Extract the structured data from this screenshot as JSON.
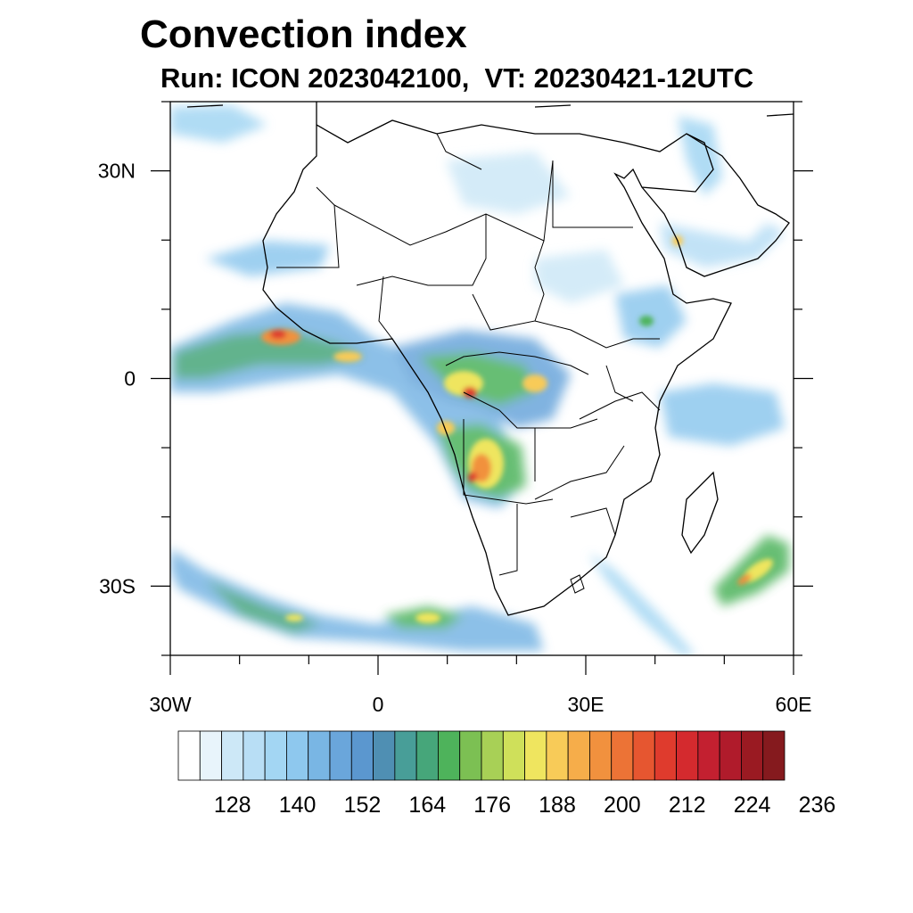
{
  "title": "Convection index",
  "subtitle": "Run: ICON 2023042100,  VT: 20230421-12UTC",
  "axes": {
    "lon_ticks": [
      {
        "lon": -30,
        "label": "30W"
      },
      {
        "lon": 0,
        "label": "0"
      },
      {
        "lon": 30,
        "label": "30E"
      },
      {
        "lon": 60,
        "label": "60E"
      }
    ],
    "lat_ticks": [
      {
        "lat": 30,
        "label": "30N"
      },
      {
        "lat": 0,
        "label": "0"
      },
      {
        "lat": -30,
        "label": "30S"
      }
    ],
    "lon_range": [
      -30,
      60
    ],
    "lat_range": [
      -40,
      40
    ]
  },
  "colorbar": {
    "colors": [
      "#ffffff",
      "#e8f4fb",
      "#cde8f7",
      "#b8def5",
      "#a3d6f3",
      "#8ec8ee",
      "#79b6e4",
      "#6aa6db",
      "#5b97cf",
      "#4f8fb3",
      "#489e98",
      "#46a67a",
      "#4eb35b",
      "#7cc053",
      "#a8d056",
      "#cfe05a",
      "#efe55f",
      "#f8cb58",
      "#f6ad4a",
      "#f1913e",
      "#ec7336",
      "#e65630",
      "#df3b2d",
      "#d42a2e",
      "#c32030",
      "#b01b2b",
      "#9a1a22",
      "#851a1e"
    ],
    "labels": [
      "128",
      "140",
      "152",
      "164",
      "176",
      "188",
      "200",
      "212",
      "224",
      "236"
    ]
  },
  "map_colors": {
    "light_blue": "#a3d6f3",
    "mid_blue": "#6aa6db",
    "green": "#4eb35b",
    "yellow": "#efe55f",
    "orange": "#f1913e",
    "red": "#df3b2d"
  }
}
